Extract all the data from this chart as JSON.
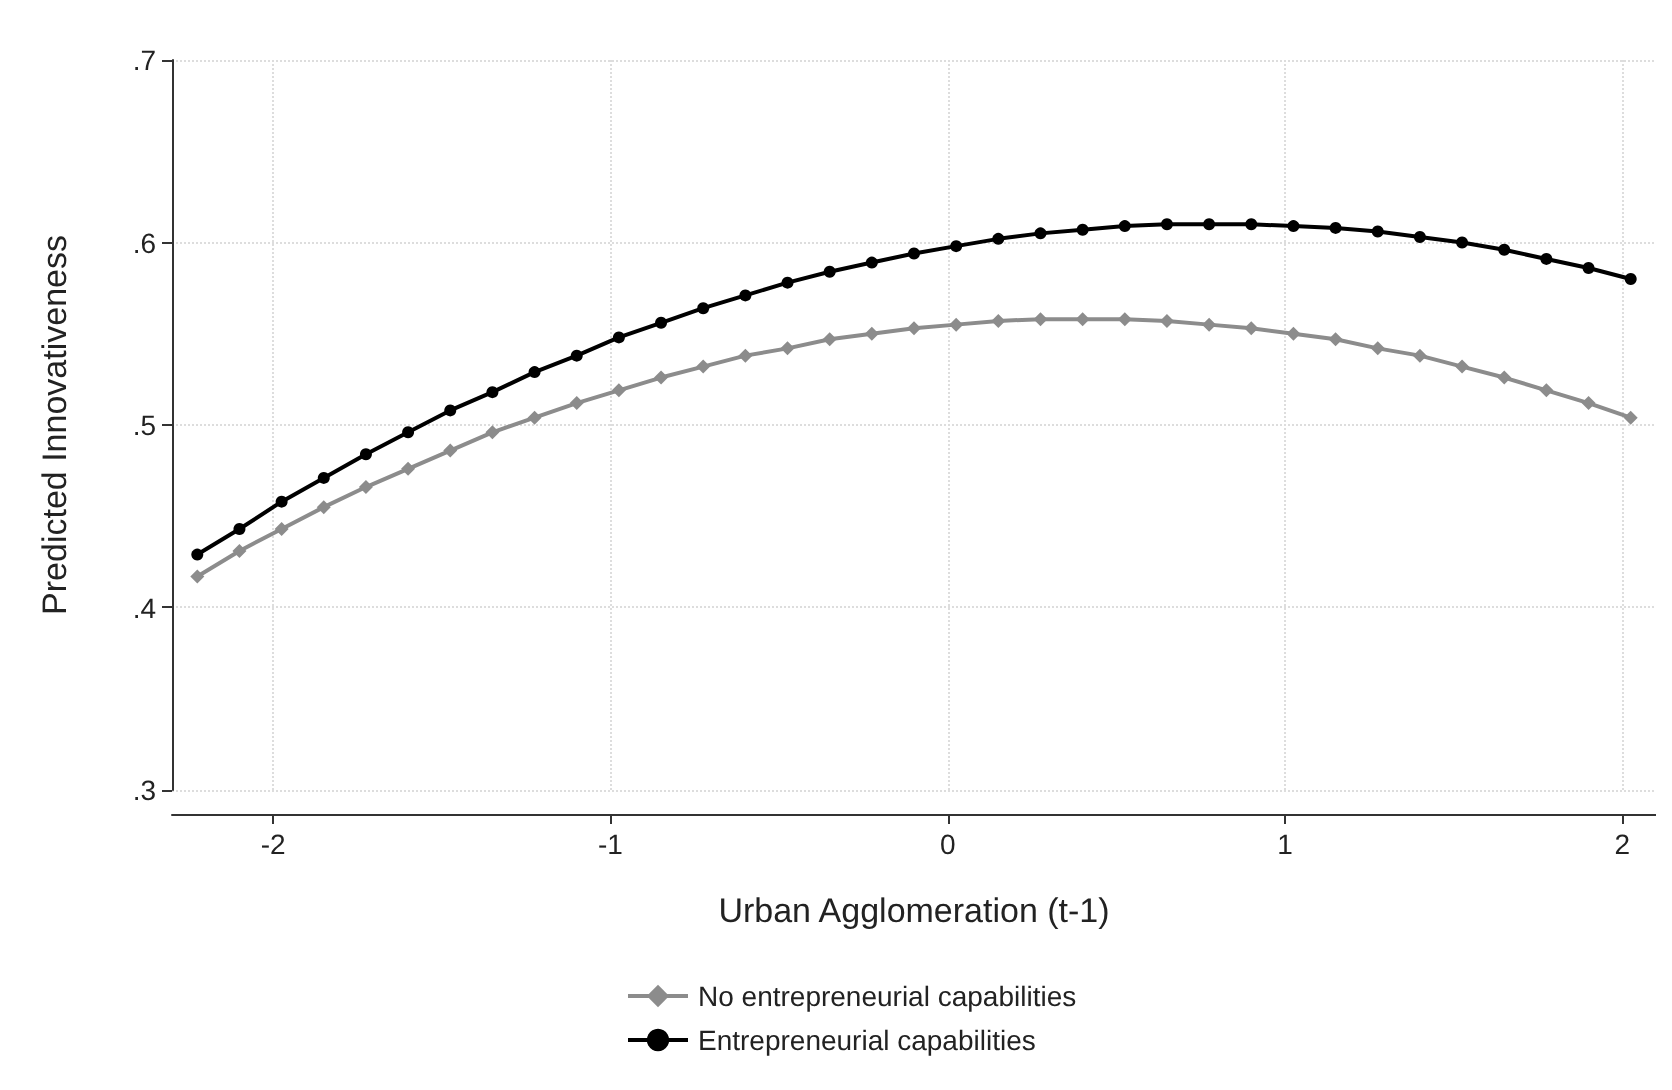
{
  "chart_data": {
    "type": "line",
    "xlabel": "Urban Agglomeration (t-1)",
    "ylabel": "Predicted Innovativeness",
    "x": [
      -2.225,
      -2.1,
      -1.975,
      -1.85,
      -1.725,
      -1.6,
      -1.475,
      -1.35,
      -1.225,
      -1.1,
      -0.975,
      -0.85,
      -0.725,
      -0.6,
      -0.475,
      -0.35,
      -0.225,
      -0.1,
      0.025,
      0.15,
      0.275,
      0.4,
      0.525,
      0.65,
      0.775,
      0.9,
      1.025,
      1.15,
      1.275,
      1.4,
      1.525,
      1.65,
      1.775,
      1.9,
      2.025
    ],
    "series": [
      {
        "name": "No entrepreneurial capabilities",
        "color": "#8c8c8c",
        "marker": "diamond",
        "values": [
          0.417,
          0.431,
          0.443,
          0.455,
          0.466,
          0.476,
          0.486,
          0.496,
          0.504,
          0.512,
          0.519,
          0.526,
          0.532,
          0.538,
          0.542,
          0.547,
          0.55,
          0.553,
          0.555,
          0.557,
          0.558,
          0.558,
          0.558,
          0.557,
          0.555,
          0.553,
          0.55,
          0.547,
          0.542,
          0.538,
          0.532,
          0.526,
          0.519,
          0.512,
          0.504
        ]
      },
      {
        "name": "Entrepreneurial capabilities",
        "color": "#000000",
        "marker": "circle",
        "values": [
          0.429,
          0.443,
          0.458,
          0.471,
          0.484,
          0.496,
          0.508,
          0.518,
          0.529,
          0.538,
          0.548,
          0.556,
          0.564,
          0.571,
          0.578,
          0.584,
          0.589,
          0.594,
          0.598,
          0.602,
          0.605,
          0.607,
          0.609,
          0.61,
          0.61,
          0.61,
          0.609,
          0.608,
          0.606,
          0.603,
          0.6,
          0.596,
          0.591,
          0.586,
          0.58
        ]
      }
    ],
    "xlim": [
      -2.3,
      2.1
    ],
    "xticks": [
      -2,
      -1,
      0,
      1,
      2
    ],
    "ylim": [
      0.3,
      0.7
    ],
    "yticks": [
      {
        "value": 0.3,
        "label": ".3"
      },
      {
        "value": 0.4,
        "label": ".4"
      },
      {
        "value": 0.5,
        "label": ".5"
      },
      {
        "value": 0.6,
        "label": ".6"
      },
      {
        "value": 0.7,
        "label": ".7"
      }
    ],
    "grid": true,
    "legend": "bottom"
  }
}
